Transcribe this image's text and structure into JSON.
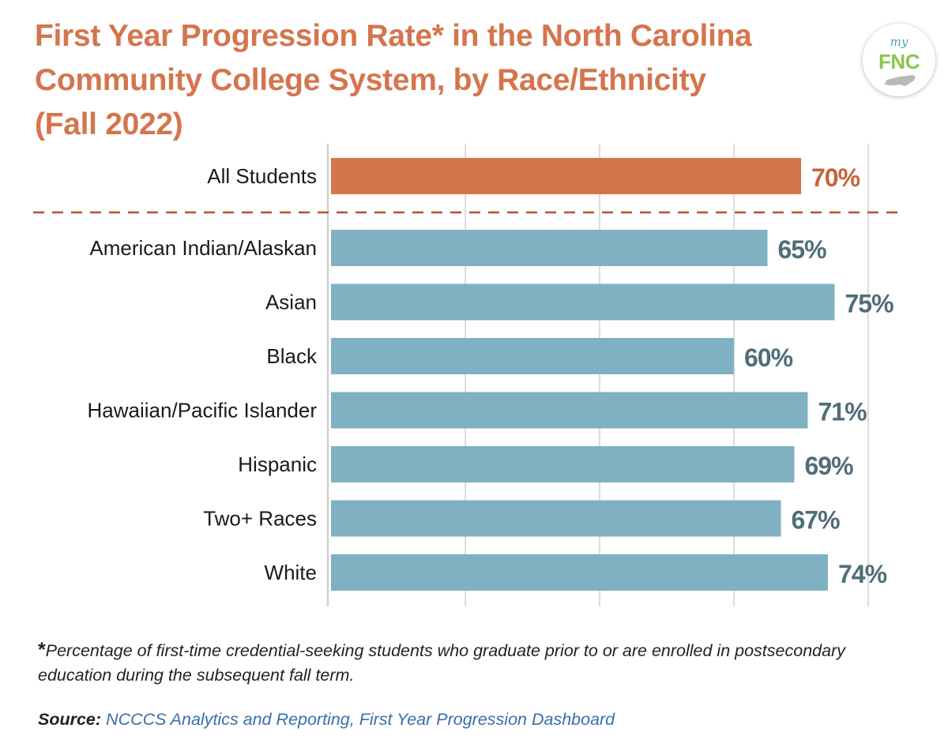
{
  "title": {
    "line1": "First Year Progression Rate* in the North Carolina",
    "line2": "Community College System, by Race/Ethnicity",
    "line3": "(Fall 2022)"
  },
  "logo": {
    "my": "my",
    "fnc": "FNC"
  },
  "chart_data": {
    "type": "bar",
    "orientation": "horizontal",
    "title": "First Year Progression Rate* in the North Carolina Community College System, by Race/Ethnicity (Fall 2022)",
    "categories": [
      "All Students",
      "American Indian/Alaskan",
      "Asian",
      "Black",
      "Hawaiian/Pacific Islander",
      "Hispanic",
      "Two+ Races",
      "White"
    ],
    "values": [
      70,
      65,
      75,
      60,
      71,
      69,
      67,
      74
    ],
    "value_labels": [
      "70%",
      "65%",
      "75%",
      "60%",
      "71%",
      "69%",
      "67%",
      "74%"
    ],
    "xlim": [
      0,
      80
    ],
    "grid": true,
    "xlabel": "",
    "ylabel": "",
    "highlight_category": "All Students",
    "colors": {
      "highlight": "#d4754d",
      "bar": "#7fb1c2",
      "highlight_label": "#c8623a",
      "bar_label": "#4e6e79",
      "separator": "#b5522e"
    }
  },
  "footnote": {
    "marker": "*",
    "text": "Percentage of first-time credential-seeking students who graduate prior to or are enrolled in postsecondary education during the subsequent fall term."
  },
  "source": {
    "label": "Source:",
    "text": "NCCCS Analytics and Reporting, First Year Progression Dashboard"
  }
}
